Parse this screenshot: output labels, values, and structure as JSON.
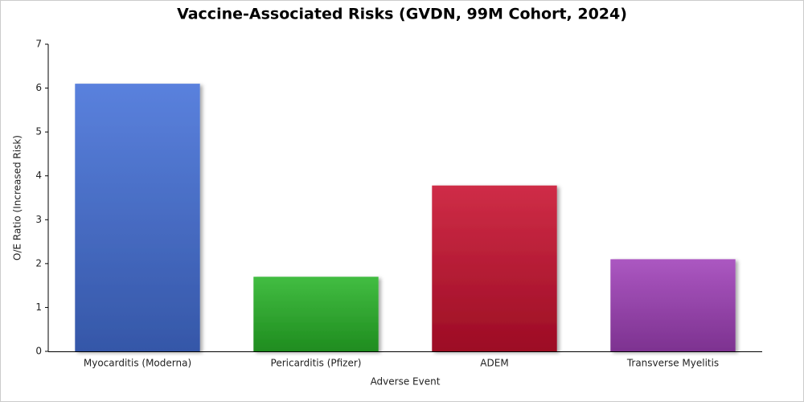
{
  "chart_data": {
    "type": "bar",
    "title": "Vaccine-Associated Risks (GVDN, 99M Cohort, 2024)",
    "x_label": "Adverse Event",
    "y_label": "O/E Ratio (Increased Risk)",
    "categories": [
      "Myocarditis (Moderna)",
      "Pericarditis (Pfizer)",
      "ADEM",
      "Transverse Myelitis"
    ],
    "values": [
      6.1,
      1.7,
      3.78,
      2.1
    ],
    "colors": [
      "#4470d8",
      "#28b428",
      "#c8102e",
      "#a040b8"
    ],
    "ylim": [
      0,
      7
    ],
    "yticks": [
      0,
      1,
      2,
      3,
      4,
      5,
      6,
      7
    ],
    "grid": false
  }
}
